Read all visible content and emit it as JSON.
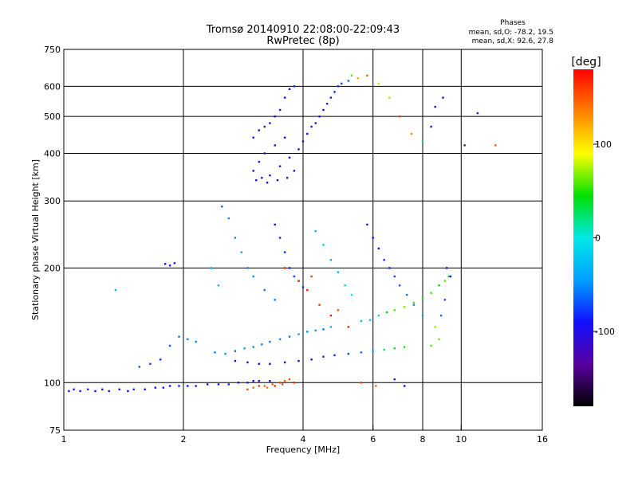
{
  "chart_data": {
    "type": "scatter",
    "title": "Tromsø 20140910 22:08:00-22:09:43",
    "subtitle": "RwPretec (8p)",
    "xlabel": "Frequency [MHz]",
    "ylabel": "Stationary phase Virtual Height [km]",
    "x_scale": "log2",
    "y_scale": "log",
    "xlim": [
      1,
      16
    ],
    "ylim": [
      75,
      750
    ],
    "x_ticks": [
      1,
      2,
      4,
      6,
      8,
      10,
      16
    ],
    "x_ticklabels": [
      "1",
      "2",
      "4",
      "6",
      "8",
      "10",
      "16"
    ],
    "y_ticks": [
      75,
      100,
      200,
      300,
      400,
      500,
      600,
      750
    ],
    "y_ticklabels": [
      "75",
      "100",
      "200",
      "300",
      "400",
      "500",
      "600",
      "750"
    ],
    "grid": true,
    "stats": {
      "heading": "Phases",
      "line_o": "mean, sd,O: -78.2, 19.5",
      "line_x": "mean, sd,X:  92.6, 27.8"
    },
    "colorbar": {
      "label": "[deg]",
      "range": [
        -180,
        180
      ],
      "ticks": [
        100,
        0,
        -100
      ],
      "ticklabels": [
        "100",
        "0",
        "-100"
      ],
      "stops": [
        "#000000",
        "#5a00a0",
        "#1010ff",
        "#00a0ff",
        "#00e8e8",
        "#00e000",
        "#ffff00",
        "#ff8000",
        "#ff0000"
      ]
    },
    "series": [
      {
        "points": [
          [
            1.03,
            95,
            -90
          ],
          [
            1.06,
            96,
            -85
          ],
          [
            1.1,
            95,
            -100
          ],
          [
            1.15,
            96,
            -80
          ],
          [
            1.2,
            95,
            -95
          ],
          [
            1.25,
            96,
            -88
          ],
          [
            1.3,
            95,
            -92
          ],
          [
            1.38,
            96,
            -86
          ],
          [
            1.45,
            95,
            -94
          ],
          [
            1.5,
            96,
            -84
          ],
          [
            1.6,
            96,
            -96
          ],
          [
            1.7,
            97,
            -90
          ],
          [
            1.78,
            97,
            -88
          ],
          [
            1.85,
            98,
            -92
          ],
          [
            1.95,
            98,
            -87
          ],
          [
            2.05,
            98,
            -91
          ],
          [
            2.15,
            98,
            -85
          ],
          [
            2.3,
            99,
            -89
          ],
          [
            2.45,
            99,
            -93
          ],
          [
            2.6,
            99,
            -86
          ],
          [
            2.75,
            100,
            -90
          ],
          [
            2.9,
            100,
            -88
          ],
          [
            3.0,
            101,
            -92
          ],
          [
            3.1,
            101,
            -86
          ],
          [
            3.3,
            101,
            -90
          ],
          [
            2.9,
            96,
            150
          ],
          [
            3.0,
            97,
            140
          ],
          [
            3.1,
            98,
            155
          ],
          [
            3.2,
            98,
            145
          ],
          [
            3.35,
            99,
            150
          ],
          [
            3.5,
            100,
            160
          ],
          [
            3.6,
            101,
            145
          ],
          [
            3.7,
            102,
            150
          ],
          [
            3.8,
            100,
            170
          ],
          [
            3.4,
            98,
            165
          ],
          [
            3.25,
            97,
            135
          ],
          [
            3.55,
            99,
            155
          ],
          [
            2.4,
            120,
            -55
          ],
          [
            2.55,
            119,
            -50
          ],
          [
            2.7,
            121,
            -60
          ],
          [
            2.85,
            123,
            -45
          ],
          [
            3.0,
            124,
            -52
          ],
          [
            3.15,
            126,
            -48
          ],
          [
            3.3,
            128,
            -55
          ],
          [
            3.5,
            130,
            -50
          ],
          [
            3.7,
            132,
            -58
          ],
          [
            3.9,
            134,
            -45
          ],
          [
            4.1,
            136,
            -52
          ],
          [
            4.3,
            137,
            -48
          ],
          [
            4.5,
            138,
            -60
          ],
          [
            4.7,
            140,
            -40
          ],
          [
            2.7,
            114,
            -95
          ],
          [
            2.9,
            113,
            -100
          ],
          [
            3.1,
            112,
            -92
          ],
          [
            3.3,
            112,
            -98
          ],
          [
            3.6,
            113,
            -100
          ],
          [
            3.9,
            114,
            -95
          ],
          [
            4.2,
            115,
            -90
          ],
          [
            4.5,
            117,
            -85
          ],
          [
            4.8,
            118,
            -80
          ],
          [
            5.2,
            119,
            -70
          ],
          [
            5.6,
            120,
            -60
          ],
          [
            6.0,
            121,
            -40
          ],
          [
            6.4,
            122,
            20
          ],
          [
            6.8,
            123,
            40
          ],
          [
            7.2,
            124,
            50
          ],
          [
            5.6,
            145,
            -30
          ],
          [
            5.9,
            146,
            -20
          ],
          [
            6.2,
            150,
            -10
          ],
          [
            6.5,
            153,
            40
          ],
          [
            6.8,
            155,
            60
          ],
          [
            7.2,
            158,
            70
          ],
          [
            7.6,
            162,
            60
          ],
          [
            8.0,
            166,
            50
          ],
          [
            8.4,
            172,
            55
          ],
          [
            8.8,
            180,
            45
          ],
          [
            9.1,
            185,
            60
          ],
          [
            9.3,
            190,
            40
          ],
          [
            3.0,
            360,
            -115
          ],
          [
            3.1,
            380,
            -110
          ],
          [
            3.2,
            400,
            -118
          ],
          [
            3.3,
            350,
            -105
          ],
          [
            3.4,
            420,
            -112
          ],
          [
            3.5,
            370,
            -108
          ],
          [
            3.6,
            440,
            -115
          ],
          [
            3.7,
            390,
            -100
          ],
          [
            3.8,
            360,
            -120
          ],
          [
            3.9,
            410,
            -110
          ],
          [
            4.0,
            430,
            -112
          ],
          [
            4.1,
            450,
            -105
          ],
          [
            4.2,
            470,
            -108
          ],
          [
            4.3,
            480,
            -100
          ],
          [
            4.4,
            500,
            -95
          ],
          [
            4.5,
            520,
            -98
          ],
          [
            4.6,
            540,
            -90
          ],
          [
            4.7,
            560,
            -92
          ],
          [
            4.8,
            580,
            -85
          ],
          [
            4.9,
            600,
            -80
          ],
          [
            5.0,
            610,
            -75
          ],
          [
            5.2,
            620,
            -60
          ],
          [
            3.0,
            440,
            -100
          ],
          [
            3.1,
            460,
            -112
          ],
          [
            3.2,
            470,
            -118
          ],
          [
            3.3,
            480,
            -110
          ],
          [
            3.4,
            500,
            -105
          ],
          [
            3.5,
            520,
            -100
          ],
          [
            3.6,
            560,
            -95
          ],
          [
            3.7,
            590,
            -90
          ],
          [
            3.8,
            600,
            -85
          ],
          [
            3.05,
            340,
            -110
          ],
          [
            3.15,
            345,
            -115
          ],
          [
            3.25,
            335,
            -108
          ],
          [
            3.45,
            340,
            -112
          ],
          [
            3.65,
            345,
            -105
          ],
          [
            5.3,
            640,
            60
          ],
          [
            5.5,
            630,
            120
          ],
          [
            5.8,
            640,
            150
          ],
          [
            6.2,
            610,
            110
          ],
          [
            6.6,
            560,
            70
          ],
          [
            7.0,
            500,
            160
          ],
          [
            7.5,
            450,
            130
          ],
          [
            8.0,
            430,
            20
          ],
          [
            8.4,
            470,
            -110
          ],
          [
            8.6,
            530,
            -120
          ],
          [
            9.0,
            560,
            -115
          ],
          [
            10.2,
            420,
            -120
          ],
          [
            11.0,
            510,
            -110
          ],
          [
            12.2,
            420,
            150
          ],
          [
            2.5,
            290,
            -60
          ],
          [
            2.6,
            270,
            -55
          ],
          [
            2.7,
            240,
            -50
          ],
          [
            2.8,
            220,
            -45
          ],
          [
            2.9,
            200,
            -55
          ],
          [
            3.0,
            190,
            -50
          ],
          [
            3.2,
            175,
            -60
          ],
          [
            3.4,
            165,
            -55
          ],
          [
            3.4,
            260,
            -90
          ],
          [
            3.5,
            240,
            -85
          ],
          [
            3.6,
            220,
            -80
          ],
          [
            3.7,
            200,
            -90
          ],
          [
            3.8,
            190,
            -75
          ],
          [
            3.9,
            185,
            -70
          ],
          [
            4.0,
            178,
            -80
          ],
          [
            4.3,
            250,
            -30
          ],
          [
            4.5,
            230,
            -20
          ],
          [
            4.7,
            210,
            -40
          ],
          [
            4.9,
            195,
            -30
          ],
          [
            5.1,
            180,
            -10
          ],
          [
            5.3,
            170,
            0
          ],
          [
            5.8,
            260,
            -100
          ],
          [
            6.0,
            240,
            -90
          ],
          [
            6.2,
            225,
            -95
          ],
          [
            6.4,
            210,
            -80
          ],
          [
            6.6,
            200,
            -85
          ],
          [
            6.8,
            190,
            -75
          ],
          [
            7.0,
            180,
            -70
          ],
          [
            7.3,
            170,
            -60
          ],
          [
            7.6,
            160,
            -50
          ],
          [
            8.0,
            150,
            -40
          ],
          [
            3.6,
            200,
            170
          ],
          [
            3.9,
            185,
            165
          ],
          [
            4.1,
            175,
            172
          ],
          [
            4.4,
            160,
            160
          ],
          [
            4.7,
            150,
            175
          ],
          [
            5.2,
            140,
            168
          ],
          [
            4.9,
            155,
            150
          ],
          [
            4.2,
            190,
            160
          ],
          [
            1.8,
            205,
            -95
          ],
          [
            1.85,
            203,
            -100
          ],
          [
            1.9,
            206,
            -90
          ],
          [
            1.55,
            110,
            -70
          ],
          [
            1.65,
            112,
            -75
          ],
          [
            1.75,
            115,
            -80
          ],
          [
            1.85,
            125,
            -70
          ],
          [
            1.95,
            132,
            -60
          ],
          [
            2.05,
            130,
            -50
          ],
          [
            2.15,
            128,
            -55
          ],
          [
            1.35,
            175,
            -30
          ],
          [
            2.35,
            200,
            -40
          ],
          [
            2.45,
            180,
            -30
          ],
          [
            5.6,
            100,
            160
          ],
          [
            6.1,
            98,
            140
          ],
          [
            6.8,
            102,
            -100
          ],
          [
            7.2,
            98,
            -90
          ],
          [
            8.6,
            140,
            70
          ],
          [
            8.8,
            130,
            65
          ],
          [
            8.4,
            125,
            60
          ],
          [
            9.2,
            200,
            -100
          ],
          [
            9.4,
            190,
            -90
          ],
          [
            9.1,
            165,
            -70
          ],
          [
            8.9,
            150,
            -60
          ]
        ]
      }
    ]
  }
}
